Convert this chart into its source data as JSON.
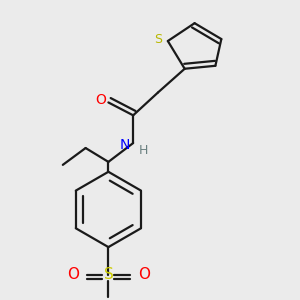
{
  "background_color": "#ebebeb",
  "line_color": "#1a1a1a",
  "line_width": 1.6,
  "atom_colors": {
    "O": "#ff0000",
    "N": "#0000ff",
    "S_thiophene": "#b8b800",
    "H": "#6a8080",
    "S_sulfonyl": "#cccc00"
  },
  "dbo": 0.018
}
